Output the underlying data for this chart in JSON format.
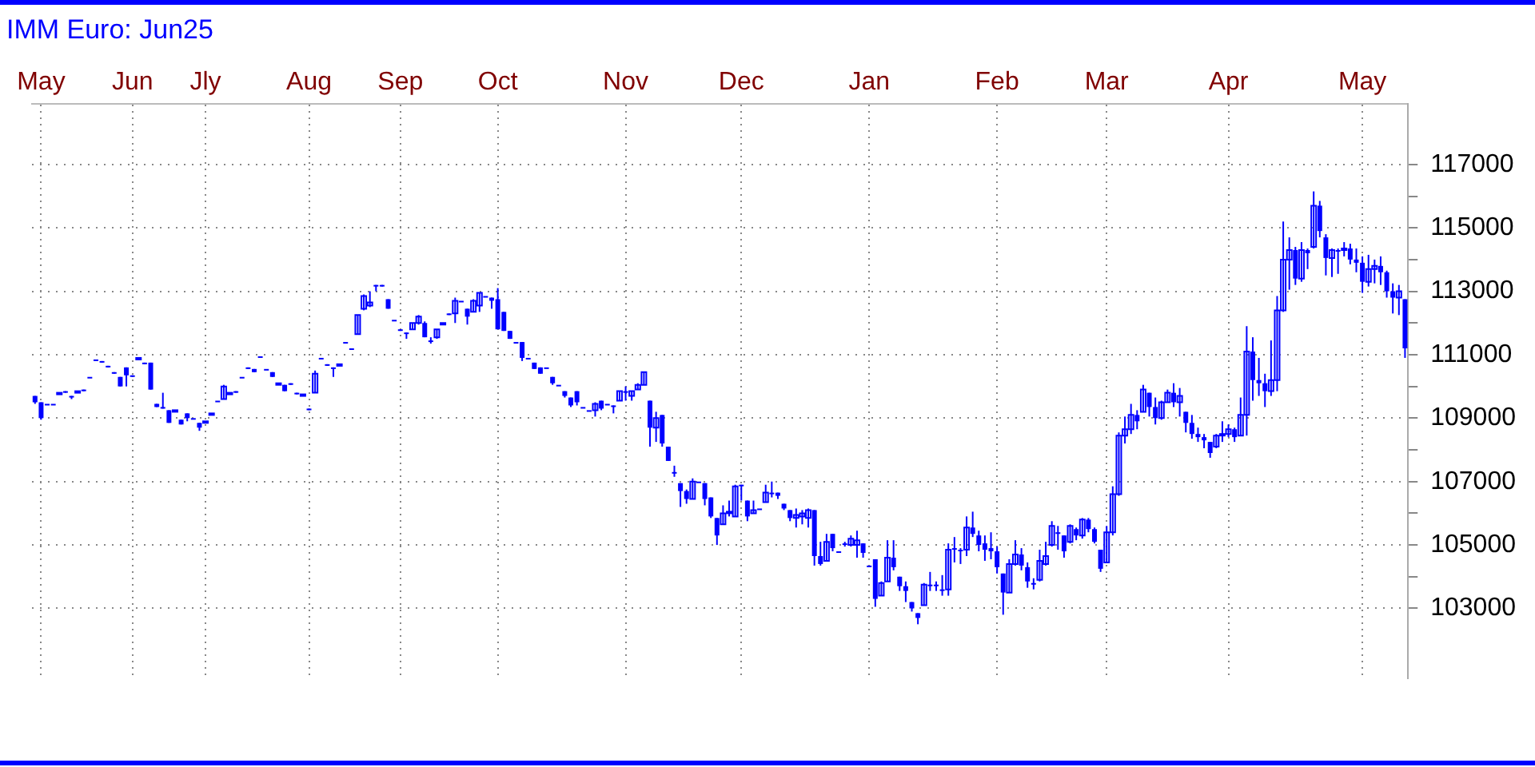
{
  "chart_data": {
    "type": "candlestick",
    "title": "IMM Euro: Jun25",
    "color": "#0000ff",
    "grid": true,
    "ylim": [
      100800,
      118900
    ],
    "yticks": [
      {
        "value": 104000,
        "label": null
      },
      {
        "value": 106000,
        "label": null
      },
      {
        "value": 108000,
        "label": null
      },
      {
        "value": 110000,
        "label": null
      },
      {
        "value": 112000,
        "label": null
      },
      {
        "value": 114000,
        "label": null
      },
      {
        "value": 116000,
        "label": null
      },
      103000,
      105000,
      107000,
      109000,
      111000,
      113000,
      115000,
      117000
    ],
    "categories": [
      null,
      "May",
      null,
      null,
      null,
      null,
      null,
      null,
      null,
      null,
      null,
      null,
      null,
      null,
      null,
      null,
      "Jun",
      null,
      null,
      null,
      null,
      null,
      null,
      null,
      null,
      null,
      null,
      null,
      "Jly",
      null,
      null,
      null,
      null,
      null,
      null,
      null,
      null,
      null,
      null,
      null,
      null,
      null,
      null,
      null,
      null,
      "Aug",
      null,
      null,
      null,
      null,
      null,
      null,
      null,
      null,
      null,
      null,
      null,
      null,
      null,
      null,
      "Sep",
      null,
      null,
      null,
      null,
      null,
      null,
      null,
      null,
      null,
      null,
      null,
      null,
      null,
      null,
      null,
      "Oct",
      null,
      null,
      null,
      null,
      null,
      null,
      null,
      null,
      null,
      null,
      null,
      null,
      null,
      null,
      null,
      null,
      null,
      null,
      null,
      null,
      "Nov",
      null,
      null,
      null,
      null,
      null,
      null,
      null,
      null,
      null,
      null,
      null,
      null,
      null,
      null,
      null,
      null,
      null,
      null,
      "Dec",
      null,
      null,
      null,
      null,
      null,
      null,
      null,
      null,
      null,
      null,
      null,
      null,
      null,
      null,
      null,
      null,
      null,
      null,
      null,
      null,
      "Jan",
      null,
      null,
      null,
      null,
      null,
      null,
      null,
      null,
      null,
      null,
      null,
      null,
      null,
      null,
      null,
      null,
      null,
      null,
      null,
      null,
      "Feb",
      null,
      null,
      null,
      null,
      null,
      null,
      null,
      null,
      null,
      null,
      null,
      null,
      null,
      null,
      null,
      null,
      null,
      "Mar",
      null,
      null,
      null,
      null,
      null,
      null,
      null,
      null,
      null,
      null,
      null,
      null,
      null,
      null,
      null,
      null,
      null,
      null,
      null,
      "Apr",
      null,
      null,
      null,
      null,
      null,
      null,
      null,
      null,
      null,
      null,
      null,
      null,
      null,
      null,
      null,
      null,
      null,
      null,
      null,
      null,
      null,
      "May",
      null,
      null,
      null,
      null,
      null,
      null,
      null
    ],
    "ohlc": [
      [
        109700,
        109700,
        109450,
        109500
      ],
      [
        109500,
        109500,
        108950,
        109000
      ],
      [
        109450,
        109450,
        109450,
        109450
      ],
      [
        109450,
        109450,
        109450,
        109450
      ],
      [
        109750,
        109800,
        109750,
        109800
      ],
      [
        109850,
        109850,
        109800,
        109800
      ],
      [
        109700,
        109700,
        109600,
        109650
      ],
      [
        109800,
        109850,
        109800,
        109850
      ],
      [
        109900,
        109900,
        109850,
        109900
      ],
      [
        110300,
        110300,
        110300,
        110300
      ],
      [
        110850,
        110850,
        110850,
        110850
      ],
      [
        110800,
        110800,
        110750,
        110750
      ],
      [
        110650,
        110650,
        110600,
        110600
      ],
      [
        110450,
        110450,
        110400,
        110450
      ],
      [
        110300,
        110300,
        110000,
        110000
      ],
      [
        110600,
        110600,
        110000,
        110350
      ],
      [
        110350,
        110350,
        110300,
        110300
      ],
      [
        110850,
        110900,
        110850,
        110900
      ],
      [
        110750,
        110750,
        110700,
        110700
      ],
      [
        110750,
        110750,
        109900,
        109900
      ],
      [
        109450,
        109450,
        109350,
        109350
      ],
      [
        109350,
        109800,
        109300,
        109300
      ],
      [
        109250,
        109250,
        108850,
        108850
      ],
      [
        109200,
        109250,
        109200,
        109250
      ],
      [
        108950,
        108950,
        108800,
        108800
      ],
      [
        109150,
        109150,
        108900,
        109000
      ],
      [
        109000,
        109000,
        109000,
        109000
      ],
      [
        108850,
        108850,
        108600,
        108700
      ],
      [
        108850,
        108900,
        108850,
        108900
      ],
      [
        109100,
        109150,
        109100,
        109150
      ],
      [
        109550,
        109550,
        109550,
        109550
      ],
      [
        109600,
        110050,
        109600,
        110000
      ],
      [
        109750,
        109800,
        109750,
        109800
      ],
      [
        109850,
        109850,
        109800,
        109850
      ],
      [
        110300,
        110300,
        110300,
        110300
      ],
      [
        110600,
        110600,
        110550,
        110550
      ],
      [
        110550,
        110550,
        110450,
        110450
      ],
      [
        110950,
        110950,
        110950,
        110950
      ],
      [
        110550,
        110550,
        110550,
        110550
      ],
      [
        110450,
        110450,
        110300,
        110300
      ],
      [
        110050,
        110100,
        110050,
        110100
      ],
      [
        110050,
        110050,
        109850,
        109850
      ],
      [
        110100,
        110100,
        110050,
        110100
      ],
      [
        109800,
        109800,
        109750,
        109750
      ],
      [
        109700,
        109750,
        109700,
        109750
      ],
      [
        109300,
        109300,
        109250,
        109300
      ],
      [
        109800,
        110500,
        109800,
        110400
      ],
      [
        110900,
        110900,
        110900,
        110900
      ],
      [
        110700,
        110700,
        110650,
        110650
      ],
      [
        110600,
        110600,
        110300,
        110550
      ],
      [
        110650,
        110700,
        110650,
        110700
      ],
      [
        111400,
        111400,
        111400,
        111400
      ],
      [
        111200,
        111200,
        111200,
        111200
      ],
      [
        111650,
        112250,
        111650,
        112250
      ],
      [
        112450,
        112900,
        112400,
        112850
      ],
      [
        112550,
        113000,
        112500,
        112650
      ],
      [
        113200,
        113200,
        113000,
        113150
      ],
      [
        113200,
        113200,
        113150,
        113200
      ],
      [
        112750,
        112750,
        112450,
        112450
      ],
      [
        112100,
        112100,
        112100,
        112100
      ],
      [
        111800,
        111800,
        111750,
        111800
      ],
      [
        111700,
        111700,
        111500,
        111650
      ],
      [
        111800,
        112000,
        111800,
        112000
      ],
      [
        112000,
        112250,
        111950,
        112200
      ],
      [
        112000,
        112050,
        111550,
        111550
      ],
      [
        111450,
        111550,
        111350,
        111450
      ],
      [
        111550,
        111800,
        111500,
        111800
      ],
      [
        111950,
        112000,
        111950,
        112000
      ],
      [
        112300,
        112300,
        112250,
        112300
      ],
      [
        112300,
        112800,
        112000,
        112700
      ],
      [
        112700,
        112700,
        112700,
        112700
      ],
      [
        112450,
        112450,
        111950,
        112200
      ],
      [
        112350,
        112750,
        112350,
        112700
      ],
      [
        112550,
        112950,
        112350,
        112950
      ],
      [
        112850,
        112850,
        112850,
        112850
      ],
      [
        112800,
        112800,
        112450,
        112700
      ],
      [
        112750,
        113100,
        111800,
        111800
      ],
      [
        112350,
        112350,
        111750,
        111750
      ],
      [
        111750,
        111750,
        111500,
        111500
      ],
      [
        111400,
        111400,
        111400,
        111400
      ],
      [
        111400,
        111400,
        110800,
        110900
      ],
      [
        110900,
        110900,
        110900,
        110900
      ],
      [
        110750,
        110750,
        110550,
        110550
      ],
      [
        110600,
        110600,
        110400,
        110400
      ],
      [
        110600,
        110600,
        110600,
        110600
      ],
      [
        110300,
        110300,
        110050,
        110100
      ],
      [
        110050,
        110050,
        110050,
        110050
      ],
      [
        109850,
        109850,
        109650,
        109700
      ],
      [
        109650,
        109650,
        109350,
        109400
      ],
      [
        109850,
        109850,
        109400,
        109500
      ],
      [
        109350,
        109350,
        109350,
        109350
      ],
      [
        109250,
        109250,
        109250,
        109250
      ],
      [
        109250,
        109500,
        109050,
        109450
      ],
      [
        109550,
        109550,
        109250,
        109300
      ],
      [
        109450,
        109450,
        109450,
        109450
      ],
      [
        109400,
        109400,
        109150,
        109400
      ],
      [
        109550,
        109850,
        109550,
        109850
      ],
      [
        109850,
        110000,
        109550,
        109850
      ],
      [
        109700,
        109850,
        109550,
        109850
      ],
      [
        109900,
        110100,
        109900,
        110050
      ],
      [
        110050,
        110450,
        110050,
        110450
      ],
      [
        109550,
        109550,
        108100,
        108700
      ],
      [
        108700,
        109200,
        108250,
        109000
      ],
      [
        109100,
        109100,
        108100,
        108200
      ],
      [
        108100,
        108100,
        107650,
        107650
      ],
      [
        107300,
        107500,
        107150,
        107300
      ],
      [
        106950,
        106950,
        106200,
        106700
      ],
      [
        106700,
        106750,
        106300,
        106450
      ],
      [
        106450,
        107100,
        106450,
        107000
      ],
      [
        107000,
        107000,
        107000,
        107000
      ],
      [
        106950,
        106950,
        106250,
        106450
      ],
      [
        106500,
        106500,
        105850,
        105900
      ],
      [
        105850,
        105850,
        105000,
        105300
      ],
      [
        105650,
        106250,
        105650,
        106000
      ],
      [
        106000,
        106400,
        105900,
        106050
      ],
      [
        105900,
        106900,
        105900,
        106850
      ],
      [
        106900,
        106900,
        106400,
        106850
      ],
      [
        106400,
        106400,
        105750,
        105900
      ],
      [
        106000,
        106400,
        106000,
        106100
      ],
      [
        106150,
        106150,
        106150,
        106150
      ],
      [
        106350,
        106900,
        106350,
        106650
      ],
      [
        106650,
        107000,
        106500,
        106600
      ],
      [
        106650,
        106650,
        106450,
        106550
      ],
      [
        106300,
        106300,
        106100,
        106150
      ],
      [
        106100,
        106100,
        105750,
        105850
      ],
      [
        105850,
        106150,
        105550,
        105950
      ],
      [
        105900,
        106100,
        105650,
        106000
      ],
      [
        105850,
        106150,
        105550,
        106100
      ],
      [
        106100,
        106100,
        104350,
        104650
      ],
      [
        104650,
        105100,
        104350,
        104400
      ],
      [
        104500,
        105350,
        104500,
        105100
      ],
      [
        105350,
        105350,
        104800,
        104900
      ],
      [
        104800,
        104800,
        104800,
        104800
      ],
      [
        105050,
        105100,
        104950,
        105000
      ],
      [
        105000,
        105300,
        104950,
        105200
      ],
      [
        105000,
        105450,
        104600,
        105150
      ],
      [
        105050,
        105050,
        104600,
        104750
      ],
      [
        104350,
        104350,
        104350,
        104350
      ],
      [
        104550,
        104550,
        103050,
        103300
      ],
      [
        103400,
        103850,
        103400,
        103800
      ],
      [
        103850,
        105150,
        103850,
        104600
      ],
      [
        104600,
        105150,
        104200,
        104300
      ],
      [
        104000,
        104000,
        103550,
        103700
      ],
      [
        103700,
        103850,
        103200,
        103550
      ],
      [
        103200,
        103200,
        102900,
        103000
      ],
      [
        102850,
        102850,
        102500,
        102700
      ],
      [
        103100,
        103800,
        103100,
        103750
      ],
      [
        103750,
        104150,
        103550,
        103750
      ],
      [
        103750,
        103850,
        103550,
        103750
      ],
      [
        103600,
        104050,
        103400,
        103600
      ],
      [
        103600,
        105050,
        103400,
        104850
      ],
      [
        104900,
        105250,
        104450,
        104850
      ],
      [
        104850,
        104900,
        104400,
        104850
      ],
      [
        104850,
        105900,
        104650,
        105550
      ],
      [
        105550,
        106050,
        105250,
        105350
      ],
      [
        105300,
        105450,
        104800,
        105000
      ],
      [
        105050,
        105300,
        104500,
        104850
      ],
      [
        104900,
        105400,
        104550,
        104800
      ],
      [
        104800,
        104950,
        104100,
        104300
      ],
      [
        104100,
        104100,
        102800,
        103500
      ],
      [
        103500,
        104550,
        103500,
        104400
      ],
      [
        104400,
        105150,
        104350,
        104700
      ],
      [
        104700,
        104900,
        104200,
        104350
      ],
      [
        104300,
        104450,
        103650,
        103850
      ],
      [
        103800,
        103950,
        103600,
        103800
      ],
      [
        103900,
        104850,
        103850,
        104500
      ],
      [
        104400,
        105100,
        104350,
        104650
      ],
      [
        105000,
        105750,
        104950,
        105600
      ],
      [
        105400,
        105600,
        104850,
        105350
      ],
      [
        105300,
        105300,
        104600,
        104800
      ],
      [
        105100,
        105650,
        105050,
        105600
      ],
      [
        105500,
        105550,
        105150,
        105300
      ],
      [
        105300,
        105850,
        105200,
        105800
      ],
      [
        105800,
        105850,
        105400,
        105500
      ],
      [
        105500,
        105550,
        105050,
        105100
      ],
      [
        104850,
        104850,
        104150,
        104250
      ],
      [
        104450,
        105600,
        104450,
        105400
      ],
      [
        105400,
        106850,
        105300,
        106600
      ],
      [
        106600,
        108550,
        106550,
        108450
      ],
      [
        108450,
        109050,
        108200,
        108650
      ],
      [
        108650,
        109450,
        108500,
        109100
      ],
      [
        109100,
        109250,
        108650,
        108900
      ],
      [
        109200,
        110050,
        109200,
        109900
      ],
      [
        109800,
        109800,
        109050,
        109350
      ],
      [
        109350,
        109650,
        108800,
        109000
      ],
      [
        109000,
        109550,
        108950,
        109500
      ],
      [
        109500,
        109900,
        109500,
        109800
      ],
      [
        109800,
        110100,
        109350,
        109500
      ],
      [
        109500,
        109950,
        109050,
        109700
      ],
      [
        109200,
        109200,
        108550,
        108850
      ],
      [
        108850,
        109100,
        108350,
        108500
      ],
      [
        108500,
        108700,
        108250,
        108400
      ],
      [
        108400,
        108500,
        108050,
        108300
      ],
      [
        108250,
        108250,
        107750,
        107900
      ],
      [
        108100,
        108500,
        108050,
        108450
      ],
      [
        108450,
        108900,
        108250,
        108500
      ],
      [
        108500,
        108800,
        108400,
        108650
      ],
      [
        108650,
        108700,
        108250,
        108400
      ],
      [
        108450,
        109650,
        108450,
        109100
      ],
      [
        109100,
        111900,
        108450,
        111100
      ],
      [
        111100,
        111550,
        109550,
        110200
      ],
      [
        110200,
        110900,
        109700,
        110100
      ],
      [
        110100,
        110400,
        109350,
        109850
      ],
      [
        109850,
        111450,
        109700,
        110200
      ],
      [
        110200,
        112850,
        109850,
        112400
      ],
      [
        112400,
        115200,
        112350,
        114000
      ],
      [
        114000,
        114700,
        113050,
        114300
      ],
      [
        114300,
        114400,
        113200,
        113400
      ],
      [
        113400,
        114550,
        113300,
        114300
      ],
      [
        114300,
        114350,
        113700,
        114200
      ],
      [
        114400,
        116150,
        114350,
        115700
      ],
      [
        115700,
        115850,
        114700,
        114900
      ],
      [
        114700,
        114800,
        113500,
        114050
      ],
      [
        114050,
        114350,
        113450,
        114300
      ],
      [
        114300,
        114350,
        113550,
        114300
      ],
      [
        114300,
        114550,
        114100,
        114350
      ],
      [
        114350,
        114500,
        113850,
        114000
      ],
      [
        114000,
        114350,
        113600,
        113900
      ],
      [
        113900,
        114100,
        112950,
        113300
      ],
      [
        113300,
        114150,
        113150,
        113700
      ],
      [
        113700,
        114000,
        113250,
        113800
      ],
      [
        113800,
        114100,
        113200,
        113600
      ],
      [
        113600,
        113650,
        112800,
        113000
      ],
      [
        113000,
        113250,
        112300,
        112800
      ],
      [
        112800,
        113200,
        112250,
        113000
      ],
      [
        112750,
        112750,
        110900,
        111200
      ]
    ]
  }
}
